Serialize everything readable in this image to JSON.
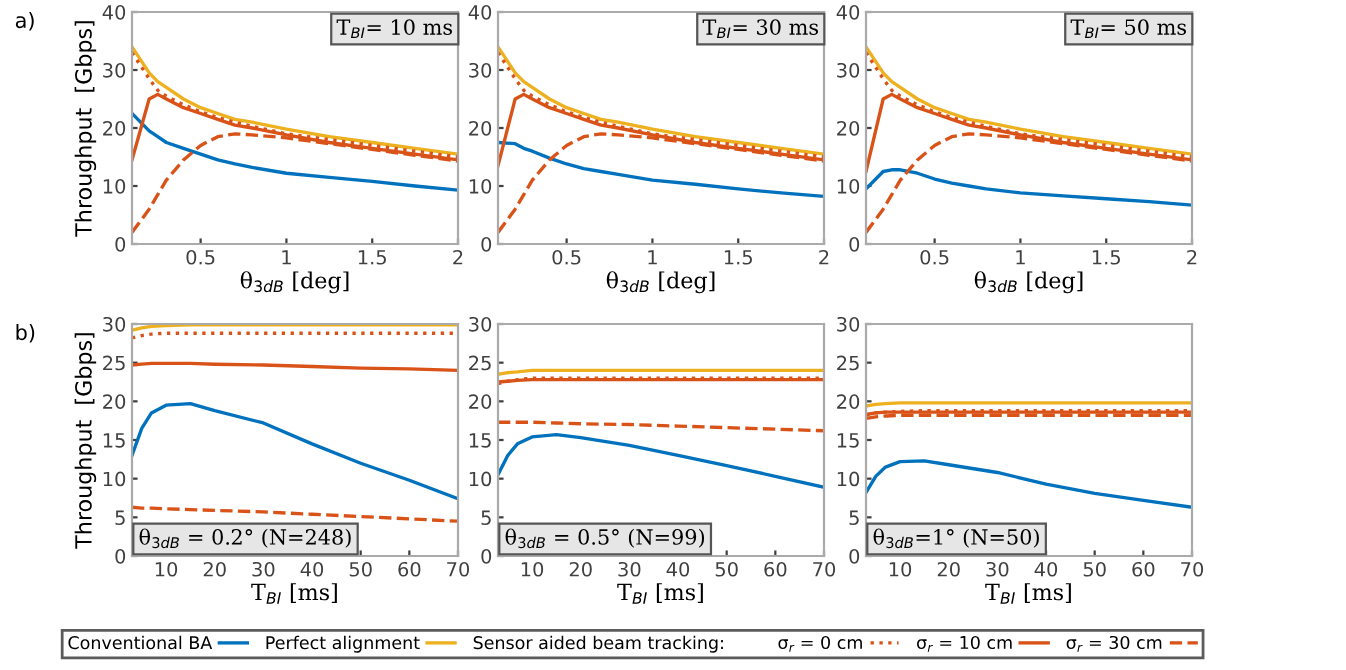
{
  "chart_data": [
    {
      "type": "line",
      "title": "T$_{BI}$= 10 ms",
      "xlabel": "θ$_{3dB}$ [deg]",
      "ylabel": "Throughput  [Gbps]",
      "annotations": [
        "a)"
      ],
      "legend": "bottom",
      "legend_title": "Sensor aided beam tracking:",
      "xlim": [
        0.1,
        2
      ],
      "ylim": [
        0,
        40
      ],
      "xticks": [
        0.5,
        1,
        1.5,
        2
      ],
      "yticks": [
        0,
        10,
        20,
        30,
        40
      ],
      "grid": false,
      "x": [
        0.1,
        0.2,
        0.25,
        0.3,
        0.4,
        0.5,
        0.6,
        0.7,
        0.8,
        1,
        1.25,
        1.5,
        1.75,
        2
      ],
      "series": [
        {
          "name": "Conventional BA",
          "color": "#0072bd",
          "line_style": "solid",
          "values": [
            22.5,
            19.5,
            18.5,
            17.5,
            16.5,
            15.5,
            14.5,
            13.8,
            13.2,
            12.2,
            11.5,
            10.8,
            10,
            9.3
          ]
        },
        {
          "name": "Perfect alignment",
          "color": "#edb120",
          "line_style": "solid",
          "values": [
            34,
            29.5,
            28,
            27,
            25,
            23.5,
            22.5,
            21.5,
            21,
            19.8,
            18.5,
            17.5,
            16.5,
            15.5
          ]
        },
        {
          "name": "σ$_{r}$ = 0 cm",
          "color": "#d95319",
          "line_style": "dotted",
          "values": [
            33,
            28.5,
            26.5,
            25.5,
            24,
            22.8,
            21.8,
            21,
            20.3,
            19,
            18,
            17,
            16,
            15
          ]
        },
        {
          "name": "σ$_{r}$ = 10 cm",
          "color": "#d95319",
          "line_style": "solid",
          "values": [
            14.5,
            25,
            25.8,
            25,
            23.5,
            22.5,
            21.5,
            20.5,
            20,
            18.8,
            17.5,
            16.5,
            15.5,
            14.5
          ]
        },
        {
          "name": "σ$_{r}$ = 30 cm",
          "color": "#d95319",
          "line_style": "dashed",
          "values": [
            2,
            6,
            8.5,
            11,
            14.5,
            17,
            18.5,
            19,
            18.8,
            18.3,
            17.3,
            16.3,
            15.3,
            14.3
          ]
        }
      ]
    },
    {
      "type": "line",
      "title": "T$_{BI}$= 30 ms",
      "xlabel": "θ$_{3dB}$ [deg]",
      "xlim": [
        0.1,
        2
      ],
      "ylim": [
        0,
        40
      ],
      "xticks": [
        0.5,
        1,
        1.5,
        2
      ],
      "yticks": [
        0,
        10,
        20,
        30,
        40
      ],
      "grid": false,
      "x": [
        0.1,
        0.2,
        0.25,
        0.3,
        0.4,
        0.5,
        0.6,
        0.7,
        0.8,
        1,
        1.25,
        1.5,
        1.75,
        2
      ],
      "series": [
        {
          "color": "#0072bd",
          "line_style": "solid",
          "values": [
            17.5,
            17.3,
            16.5,
            16,
            14.8,
            13.8,
            13,
            12.5,
            12,
            11,
            10.3,
            9.5,
            8.8,
            8.2
          ]
        },
        {
          "color": "#edb120",
          "line_style": "solid",
          "values": [
            34,
            29.5,
            28,
            27,
            25,
            23.5,
            22.5,
            21.5,
            21,
            19.8,
            18.5,
            17.5,
            16.5,
            15.5
          ]
        },
        {
          "color": "#d95319",
          "line_style": "dotted",
          "values": [
            33,
            28.5,
            26.5,
            25.5,
            24,
            22.8,
            21.8,
            21,
            20.3,
            19,
            18,
            17,
            16,
            15
          ]
        },
        {
          "color": "#d95319",
          "line_style": "solid",
          "values": [
            13.5,
            25,
            25.8,
            25,
            23.5,
            22.5,
            21.5,
            20.5,
            20,
            18.8,
            17.5,
            16.5,
            15.5,
            14.5
          ]
        },
        {
          "color": "#d95319",
          "line_style": "dashed",
          "values": [
            2,
            6,
            8.5,
            11,
            14.5,
            17,
            18.5,
            19,
            18.8,
            18.3,
            17.3,
            16.3,
            15.3,
            14.3
          ]
        }
      ]
    },
    {
      "type": "line",
      "title": "T$_{BI}$= 50 ms",
      "xlabel": "θ$_{3dB}$ [deg]",
      "xlim": [
        0.1,
        2
      ],
      "ylim": [
        0,
        40
      ],
      "xticks": [
        0.5,
        1,
        1.5,
        2
      ],
      "yticks": [
        0,
        10,
        20,
        30,
        40
      ],
      "grid": false,
      "x": [
        0.1,
        0.2,
        0.25,
        0.3,
        0.4,
        0.5,
        0.6,
        0.7,
        0.8,
        1,
        1.25,
        1.5,
        1.75,
        2
      ],
      "series": [
        {
          "color": "#0072bd",
          "line_style": "solid",
          "values": [
            9.5,
            12.5,
            12.8,
            12.8,
            12.2,
            11.2,
            10.5,
            10,
            9.5,
            8.8,
            8.3,
            7.8,
            7.3,
            6.7
          ]
        },
        {
          "color": "#edb120",
          "line_style": "solid",
          "values": [
            34,
            29.5,
            28,
            27,
            25,
            23.5,
            22.5,
            21.5,
            21,
            19.8,
            18.5,
            17.5,
            16.5,
            15.5
          ]
        },
        {
          "color": "#d95319",
          "line_style": "dotted",
          "values": [
            33,
            28.5,
            26.5,
            25.5,
            24,
            22.8,
            21.8,
            21,
            20.3,
            19,
            18,
            17,
            16,
            15
          ]
        },
        {
          "color": "#d95319",
          "line_style": "solid",
          "values": [
            12.5,
            25,
            25.8,
            25,
            23.5,
            22.5,
            21.5,
            20.5,
            20,
            18.8,
            17.5,
            16.5,
            15.5,
            14.5
          ]
        },
        {
          "color": "#d95319",
          "line_style": "dashed",
          "values": [
            2,
            6,
            8.5,
            11,
            14.5,
            17,
            18.5,
            19,
            18.8,
            18.3,
            17.3,
            16.3,
            15.3,
            14.3
          ]
        }
      ]
    },
    {
      "type": "line",
      "title": "θ$_{3dB}$ = 0.2° (N=248)",
      "xlabel": "T$_{BI}$ [ms]",
      "ylabel": "Throughput  [Gbps]",
      "annotations": [
        "b)"
      ],
      "xlim": [
        3,
        70
      ],
      "ylim": [
        0,
        30
      ],
      "xticks": [
        10,
        20,
        30,
        40,
        50,
        60,
        70
      ],
      "yticks": [
        0,
        5,
        10,
        15,
        20,
        25,
        30
      ],
      "grid": false,
      "x": [
        3,
        5,
        7,
        10,
        15,
        20,
        30,
        40,
        50,
        60,
        70
      ],
      "series": [
        {
          "color": "#0072bd",
          "line_style": "solid",
          "values": [
            13,
            16.5,
            18.5,
            19.5,
            19.7,
            18.8,
            17.2,
            14.5,
            12,
            9.8,
            7.4
          ]
        },
        {
          "color": "#edb120",
          "line_style": "solid",
          "values": [
            29.2,
            29.5,
            29.7,
            29.8,
            29.9,
            29.9,
            29.9,
            29.9,
            29.9,
            29.9,
            29.9
          ]
        },
        {
          "color": "#d95319",
          "line_style": "dotted",
          "values": [
            28.2,
            28.5,
            28.7,
            28.8,
            28.8,
            28.8,
            28.8,
            28.8,
            28.8,
            28.8,
            28.8
          ]
        },
        {
          "color": "#d95319",
          "line_style": "solid",
          "values": [
            24.7,
            24.8,
            24.9,
            24.9,
            24.9,
            24.8,
            24.7,
            24.5,
            24.3,
            24.2,
            24
          ]
        },
        {
          "color": "#d95319",
          "line_style": "dashed",
          "values": [
            6.3,
            6.2,
            6.2,
            6.1,
            6,
            5.9,
            5.7,
            5.4,
            5.1,
            4.8,
            4.5
          ]
        }
      ]
    },
    {
      "type": "line",
      "title": "θ$_{3dB}$ = 0.5° (N=99)",
      "xlabel": "T$_{BI}$ [ms]",
      "xlim": [
        3,
        70
      ],
      "ylim": [
        0,
        30
      ],
      "xticks": [
        10,
        20,
        30,
        40,
        50,
        60,
        70
      ],
      "yticks": [
        0,
        5,
        10,
        15,
        20,
        25,
        30
      ],
      "grid": false,
      "x": [
        3,
        5,
        7,
        10,
        15,
        20,
        30,
        40,
        50,
        60,
        70
      ],
      "series": [
        {
          "color": "#0072bd",
          "line_style": "solid",
          "values": [
            10.5,
            13,
            14.5,
            15.4,
            15.7,
            15.3,
            14.3,
            13,
            11.7,
            10.3,
            8.9
          ]
        },
        {
          "color": "#edb120",
          "line_style": "solid",
          "values": [
            23.5,
            23.7,
            23.8,
            24,
            24,
            24,
            24,
            24,
            24,
            24,
            24
          ]
        },
        {
          "color": "#d95319",
          "line_style": "dotted",
          "values": [
            22.3,
            22.6,
            22.8,
            23,
            23,
            23,
            23,
            23,
            23,
            23,
            23
          ]
        },
        {
          "color": "#d95319",
          "line_style": "solid",
          "values": [
            22.5,
            22.6,
            22.7,
            22.8,
            22.8,
            22.8,
            22.8,
            22.8,
            22.8,
            22.8,
            22.8
          ]
        },
        {
          "color": "#d95319",
          "line_style": "dashed",
          "values": [
            17.3,
            17.3,
            17.3,
            17.3,
            17.2,
            17.1,
            17,
            16.8,
            16.6,
            16.4,
            16.2
          ]
        }
      ]
    },
    {
      "type": "line",
      "title": "θ$_{3dB}$=1° (N=50)",
      "xlabel": "T$_{BI}$ [ms]",
      "xlim": [
        3,
        70
      ],
      "ylim": [
        0,
        30
      ],
      "xticks": [
        10,
        20,
        30,
        40,
        50,
        60,
        70
      ],
      "yticks": [
        0,
        5,
        10,
        15,
        20,
        25,
        30
      ],
      "grid": false,
      "x": [
        3,
        5,
        7,
        10,
        15,
        20,
        30,
        40,
        50,
        60,
        70
      ],
      "series": [
        {
          "color": "#0072bd",
          "line_style": "solid",
          "values": [
            8.2,
            10.3,
            11.5,
            12.2,
            12.3,
            11.8,
            10.8,
            9.3,
            8.1,
            7.2,
            6.3
          ]
        },
        {
          "color": "#edb120",
          "line_style": "solid",
          "values": [
            19.4,
            19.6,
            19.7,
            19.8,
            19.8,
            19.8,
            19.8,
            19.8,
            19.8,
            19.8,
            19.8
          ]
        },
        {
          "color": "#d95319",
          "line_style": "dotted",
          "values": [
            18.2,
            18.5,
            18.6,
            18.7,
            18.8,
            18.8,
            18.8,
            18.8,
            18.8,
            18.8,
            18.8
          ]
        },
        {
          "color": "#d95319",
          "line_style": "solid",
          "values": [
            18.3,
            18.5,
            18.6,
            18.6,
            18.6,
            18.6,
            18.6,
            18.6,
            18.6,
            18.6,
            18.6
          ]
        },
        {
          "color": "#d95319",
          "line_style": "dashed",
          "values": [
            17.8,
            18,
            18.1,
            18.2,
            18.2,
            18.2,
            18.2,
            18.2,
            18.2,
            18.2,
            18.2
          ]
        }
      ]
    }
  ]
}
